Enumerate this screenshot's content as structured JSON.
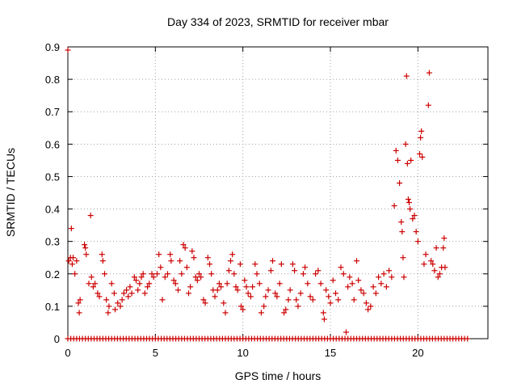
{
  "chart_data": {
    "type": "scatter",
    "title": "Day 334 of 2023, SRMTID for receiver mbar",
    "xlabel": "GPS time / hours",
    "ylabel": "SRMTID / TECUs",
    "xlim": [
      0,
      24
    ],
    "ylim": [
      0,
      0.9
    ],
    "xticks": [
      0,
      5,
      10,
      15,
      20
    ],
    "yticks": [
      0,
      0.1,
      0.2,
      0.3,
      0.4,
      0.5,
      0.6,
      0.7,
      0.8,
      0.9
    ],
    "grid": true,
    "marker": "plus",
    "color": "#cc0000",
    "series": [
      {
        "name": "mbar",
        "points": [
          [
            0.0,
            0.89
          ],
          [
            0.05,
            0.24
          ],
          [
            0.15,
            0.25
          ],
          [
            0.2,
            0.34
          ],
          [
            0.25,
            0.23
          ],
          [
            0.3,
            0.25
          ],
          [
            0.4,
            0.2
          ],
          [
            0.5,
            0.24
          ],
          [
            0.6,
            0.11
          ],
          [
            0.65,
            0.08
          ],
          [
            0.7,
            0.12
          ],
          [
            0.95,
            0.29
          ],
          [
            1.0,
            0.28
          ],
          [
            1.05,
            0.26
          ],
          [
            1.2,
            0.17
          ],
          [
            1.3,
            0.38
          ],
          [
            1.35,
            0.19
          ],
          [
            1.45,
            0.16
          ],
          [
            1.55,
            0.17
          ],
          [
            1.7,
            0.14
          ],
          [
            1.8,
            0.13
          ],
          [
            1.95,
            0.26
          ],
          [
            2.0,
            0.24
          ],
          [
            2.1,
            0.2
          ],
          [
            2.2,
            0.12
          ],
          [
            2.3,
            0.08
          ],
          [
            2.35,
            0.1
          ],
          [
            2.5,
            0.17
          ],
          [
            2.65,
            0.14
          ],
          [
            2.7,
            0.09
          ],
          [
            2.85,
            0.11
          ],
          [
            3.0,
            0.1
          ],
          [
            3.1,
            0.12
          ],
          [
            3.2,
            0.14
          ],
          [
            3.35,
            0.15
          ],
          [
            3.45,
            0.13
          ],
          [
            3.55,
            0.16
          ],
          [
            3.65,
            0.14
          ],
          [
            3.8,
            0.19
          ],
          [
            3.9,
            0.18
          ],
          [
            4.0,
            0.15
          ],
          [
            4.1,
            0.17
          ],
          [
            4.2,
            0.19
          ],
          [
            4.3,
            0.2
          ],
          [
            4.4,
            0.14
          ],
          [
            4.55,
            0.16
          ],
          [
            4.65,
            0.17
          ],
          [
            4.8,
            0.2
          ],
          [
            4.9,
            0.19
          ],
          [
            5.1,
            0.2
          ],
          [
            5.2,
            0.26
          ],
          [
            5.3,
            0.22
          ],
          [
            5.4,
            0.12
          ],
          [
            5.55,
            0.19
          ],
          [
            5.7,
            0.2
          ],
          [
            5.85,
            0.26
          ],
          [
            5.9,
            0.24
          ],
          [
            6.05,
            0.18
          ],
          [
            6.15,
            0.17
          ],
          [
            6.3,
            0.15
          ],
          [
            6.4,
            0.24
          ],
          [
            6.5,
            0.2
          ],
          [
            6.6,
            0.29
          ],
          [
            6.7,
            0.28
          ],
          [
            6.8,
            0.22
          ],
          [
            6.9,
            0.14
          ],
          [
            7.0,
            0.16
          ],
          [
            7.1,
            0.27
          ],
          [
            7.2,
            0.25
          ],
          [
            7.3,
            0.19
          ],
          [
            7.4,
            0.18
          ],
          [
            7.5,
            0.2
          ],
          [
            7.6,
            0.19
          ],
          [
            7.75,
            0.12
          ],
          [
            7.85,
            0.11
          ],
          [
            8.0,
            0.25
          ],
          [
            8.1,
            0.23
          ],
          [
            8.2,
            0.2
          ],
          [
            8.3,
            0.15
          ],
          [
            8.4,
            0.13
          ],
          [
            8.55,
            0.15
          ],
          [
            8.65,
            0.17
          ],
          [
            8.75,
            0.16
          ],
          [
            8.9,
            0.11
          ],
          [
            9.0,
            0.08
          ],
          [
            9.1,
            0.17
          ],
          [
            9.2,
            0.21
          ],
          [
            9.3,
            0.24
          ],
          [
            9.4,
            0.26
          ],
          [
            9.5,
            0.2
          ],
          [
            9.6,
            0.16
          ],
          [
            9.7,
            0.15
          ],
          [
            9.85,
            0.23
          ],
          [
            9.9,
            0.1
          ],
          [
            10.0,
            0.09
          ],
          [
            10.1,
            0.18
          ],
          [
            10.2,
            0.16
          ],
          [
            10.3,
            0.14
          ],
          [
            10.45,
            0.13
          ],
          [
            10.55,
            0.16
          ],
          [
            10.7,
            0.23
          ],
          [
            10.8,
            0.2
          ],
          [
            10.95,
            0.17
          ],
          [
            11.05,
            0.08
          ],
          [
            11.2,
            0.1
          ],
          [
            11.3,
            0.13
          ],
          [
            11.45,
            0.15
          ],
          [
            11.6,
            0.21
          ],
          [
            11.7,
            0.24
          ],
          [
            11.85,
            0.14
          ],
          [
            11.95,
            0.13
          ],
          [
            12.1,
            0.17
          ],
          [
            12.2,
            0.23
          ],
          [
            12.35,
            0.08
          ],
          [
            12.45,
            0.09
          ],
          [
            12.6,
            0.12
          ],
          [
            12.7,
            0.15
          ],
          [
            12.85,
            0.23
          ],
          [
            12.95,
            0.21
          ],
          [
            13.05,
            0.12
          ],
          [
            13.15,
            0.1
          ],
          [
            13.3,
            0.14
          ],
          [
            13.45,
            0.2
          ],
          [
            13.55,
            0.22
          ],
          [
            13.7,
            0.17
          ],
          [
            13.85,
            0.13
          ],
          [
            14.0,
            0.12
          ],
          [
            14.15,
            0.2
          ],
          [
            14.3,
            0.21
          ],
          [
            14.45,
            0.17
          ],
          [
            14.6,
            0.08
          ],
          [
            14.65,
            0.06
          ],
          [
            14.75,
            0.15
          ],
          [
            14.9,
            0.13
          ],
          [
            15.0,
            0.11
          ],
          [
            15.15,
            0.18
          ],
          [
            15.3,
            0.14
          ],
          [
            15.45,
            0.12
          ],
          [
            15.6,
            0.22
          ],
          [
            15.75,
            0.2
          ],
          [
            15.9,
            0.02
          ],
          [
            16.0,
            0.16
          ],
          [
            16.1,
            0.19
          ],
          [
            16.25,
            0.17
          ],
          [
            16.35,
            0.12
          ],
          [
            16.5,
            0.24
          ],
          [
            16.6,
            0.18
          ],
          [
            16.75,
            0.15
          ],
          [
            16.9,
            0.14
          ],
          [
            17.05,
            0.11
          ],
          [
            17.15,
            0.09
          ],
          [
            17.3,
            0.1
          ],
          [
            17.45,
            0.16
          ],
          [
            17.6,
            0.14
          ],
          [
            17.75,
            0.19
          ],
          [
            17.9,
            0.17
          ],
          [
            18.05,
            0.2
          ],
          [
            18.2,
            0.16
          ],
          [
            18.35,
            0.21
          ],
          [
            18.5,
            0.19
          ],
          [
            18.65,
            0.41
          ],
          [
            18.75,
            0.58
          ],
          [
            18.85,
            0.55
          ],
          [
            18.95,
            0.48
          ],
          [
            19.05,
            0.36
          ],
          [
            19.1,
            0.33
          ],
          [
            19.15,
            0.25
          ],
          [
            19.2,
            0.19
          ],
          [
            19.3,
            0.6
          ],
          [
            19.35,
            0.81
          ],
          [
            19.4,
            0.54
          ],
          [
            19.45,
            0.43
          ],
          [
            19.5,
            0.42
          ],
          [
            19.55,
            0.4
          ],
          [
            19.6,
            0.55
          ],
          [
            19.7,
            0.37
          ],
          [
            19.8,
            0.38
          ],
          [
            19.9,
            0.33
          ],
          [
            20.0,
            0.3
          ],
          [
            20.1,
            0.57
          ],
          [
            20.15,
            0.62
          ],
          [
            20.2,
            0.64
          ],
          [
            20.25,
            0.56
          ],
          [
            20.35,
            0.23
          ],
          [
            20.45,
            0.26
          ],
          [
            20.6,
            0.72
          ],
          [
            20.65,
            0.82
          ],
          [
            20.75,
            0.24
          ],
          [
            20.85,
            0.23
          ],
          [
            20.95,
            0.21
          ],
          [
            21.05,
            0.28
          ],
          [
            21.15,
            0.19
          ],
          [
            21.25,
            0.2
          ],
          [
            21.35,
            0.22
          ],
          [
            21.45,
            0.28
          ],
          [
            21.5,
            0.31
          ],
          [
            21.55,
            0.22
          ]
        ],
        "zero_span": [
          0,
          22.9
        ]
      }
    ]
  }
}
